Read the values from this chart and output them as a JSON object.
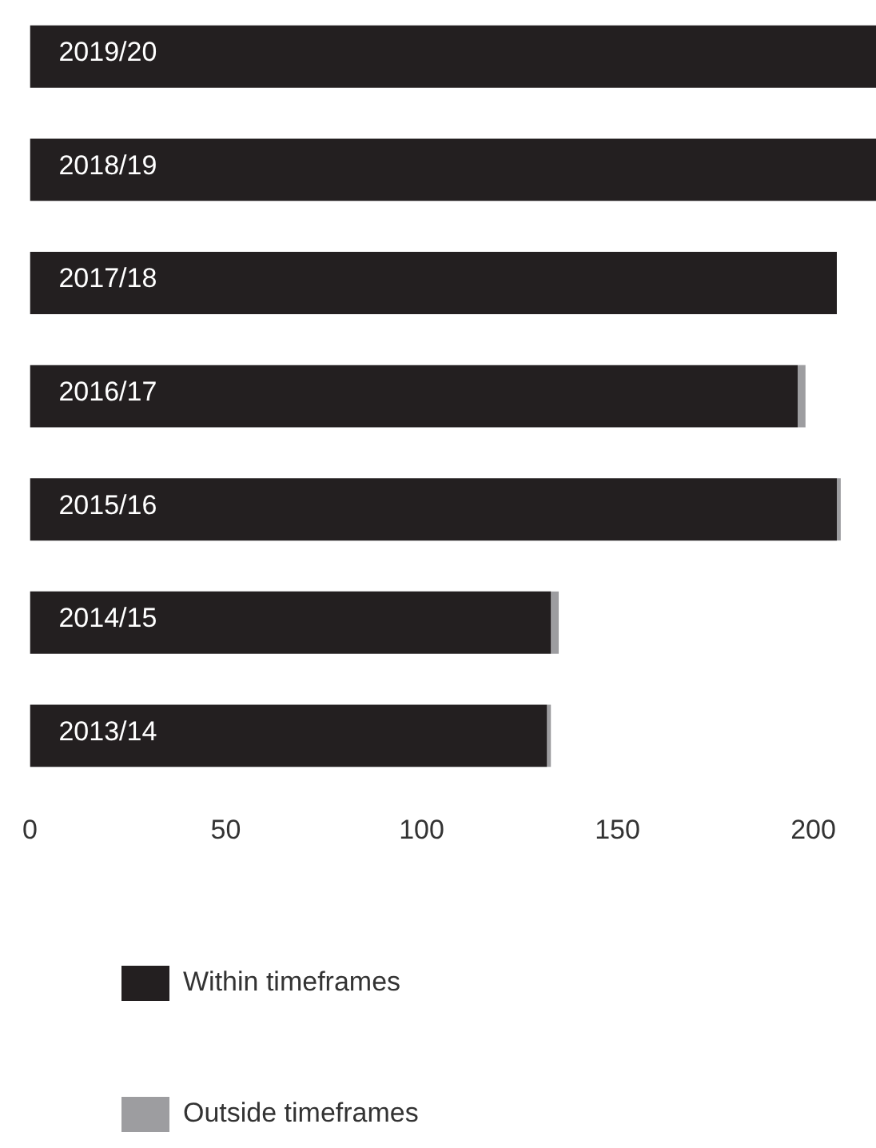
{
  "chart_data": {
    "type": "bar",
    "orientation": "horizontal",
    "stacked": true,
    "categories": [
      "2019/20",
      "2018/19",
      "2017/18",
      "2016/17",
      "2015/16",
      "2014/15",
      "2013/14"
    ],
    "series": [
      {
        "name": "Within timeframes",
        "color": "#231f20",
        "values": [
          216,
          216,
          206,
          196,
          206,
          133,
          132
        ]
      },
      {
        "name": "Outside timeframes",
        "color": "#9d9da0",
        "values": [
          0,
          0,
          0,
          2,
          1,
          2,
          1
        ]
      }
    ],
    "xlim": [
      0,
      216
    ],
    "xticks": [
      0,
      50,
      100,
      150,
      200
    ],
    "grid": false,
    "legend": "bottom"
  }
}
